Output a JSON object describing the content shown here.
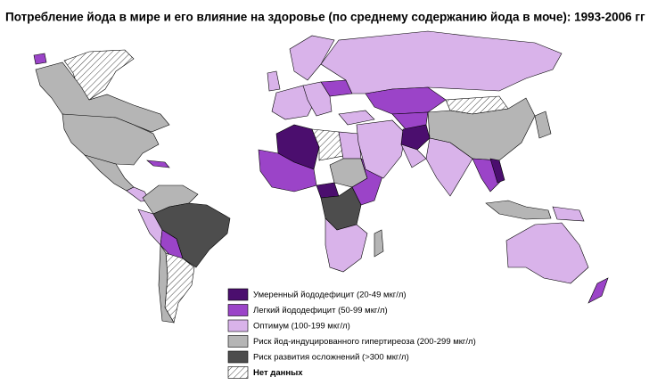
{
  "title": "Потребление йода в мире и его влияние на здоровье (по среднему содержанию йода в моче): 1993-2006 гг",
  "legend": [
    {
      "label": "Умеренный йододефицит (20-49 мкг/л)",
      "color": "#4b0e6e"
    },
    {
      "label": "Легкий йододефицит (50-99 мкг/л)",
      "color": "#9b44c8"
    },
    {
      "label": "Оптимум (100-199 мкг/л)",
      "color": "#d9b3ea"
    },
    {
      "label": "Риск йод-индуцированного гипертиреоза (200-299 мкг/л)",
      "color": "#b5b5b5"
    },
    {
      "label": "Риск развития осложнений (>300 мкг/л)",
      "color": "#4d4d4d"
    },
    {
      "label": "Нет данных",
      "color": "#ffffff",
      "pattern": "hatch"
    }
  ]
}
